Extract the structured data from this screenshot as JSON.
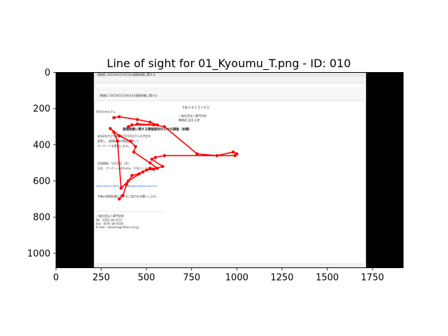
{
  "chart_data": {
    "type": "line",
    "title": "Line of sight for 01_Kyoumu_T.png - ID: 010",
    "xlabel": "",
    "ylabel": "",
    "xlim": [
      0,
      1920
    ],
    "ylim": [
      1080,
      0
    ],
    "y_inverted": true,
    "x_ticks": [
      0,
      250,
      500,
      750,
      1000,
      1250,
      1500,
      1750
    ],
    "y_ticks": [
      0,
      200,
      400,
      600,
      800,
      1000
    ],
    "grid": false,
    "colors": {
      "line": "#ff0000",
      "frame": "#000000",
      "background_band": "#000000"
    },
    "image_extent": {
      "x": [
        0,
        1920
      ],
      "y": [
        0,
        1080
      ]
    },
    "content_extent_x": [
      210,
      1715
    ],
    "background_image": {
      "window_title": "【教務】2022年5月19日(木)遠隔授業に関する",
      "email_subject": "【教務】2022年5月19日(木)遠隔授業に関する",
      "email_date": "令和 4 年 5 月 1 9 日",
      "salutation": "学生のみなさん",
      "sender_school": "一般社団法人専門学校",
      "sender_name": "教務部 吉田 正彦",
      "link_text": "https://forms.office.com/r/ResponsePage.aspx?id=",
      "body_lines": [
        "遠隔授業に関する情報提供のための調査（依頼）",
        "本科2年生が令和4年5月19日からの予定を",
        "変更し、遠隔授業の実施に関して",
        "アンケートを実施します。",
        "回答期限：5月25日（木）",
        "なお、アンケートはForms（下記リンク）から",
        "今後の遠隔授業に関するご協力をお願いします。"
      ],
      "footer_lines": [
        "一般社団法人専門学校",
        "Tel：0191-36-4737",
        "Fax：0191-36-4530",
        "E-mail：kyoumu@chiiki-u.ac.jp"
      ]
    },
    "series": [
      {
        "x": [
          320,
          350,
          450,
          520,
          560,
          450,
          400,
          420,
          540,
          600,
          780,
          890,
          980,
          1000,
          990,
          600,
          550,
          530,
          590,
          560,
          520,
          480,
          400,
          360,
          340,
          320,
          300,
          350,
          410,
          440,
          430,
          520,
          560,
          540,
          500,
          460,
          420,
          390,
          370,
          350
        ],
        "y": [
          250,
          245,
          260,
          275,
          290,
          285,
          300,
          290,
          290,
          300,
          450,
          460,
          440,
          450,
          460,
          460,
          470,
          480,
          520,
          530,
          530,
          550,
          600,
          640,
          380,
          330,
          310,
          350,
          380,
          410,
          440,
          500,
          530,
          535,
          540,
          560,
          570,
          620,
          680,
          700
        ]
      }
    ]
  }
}
